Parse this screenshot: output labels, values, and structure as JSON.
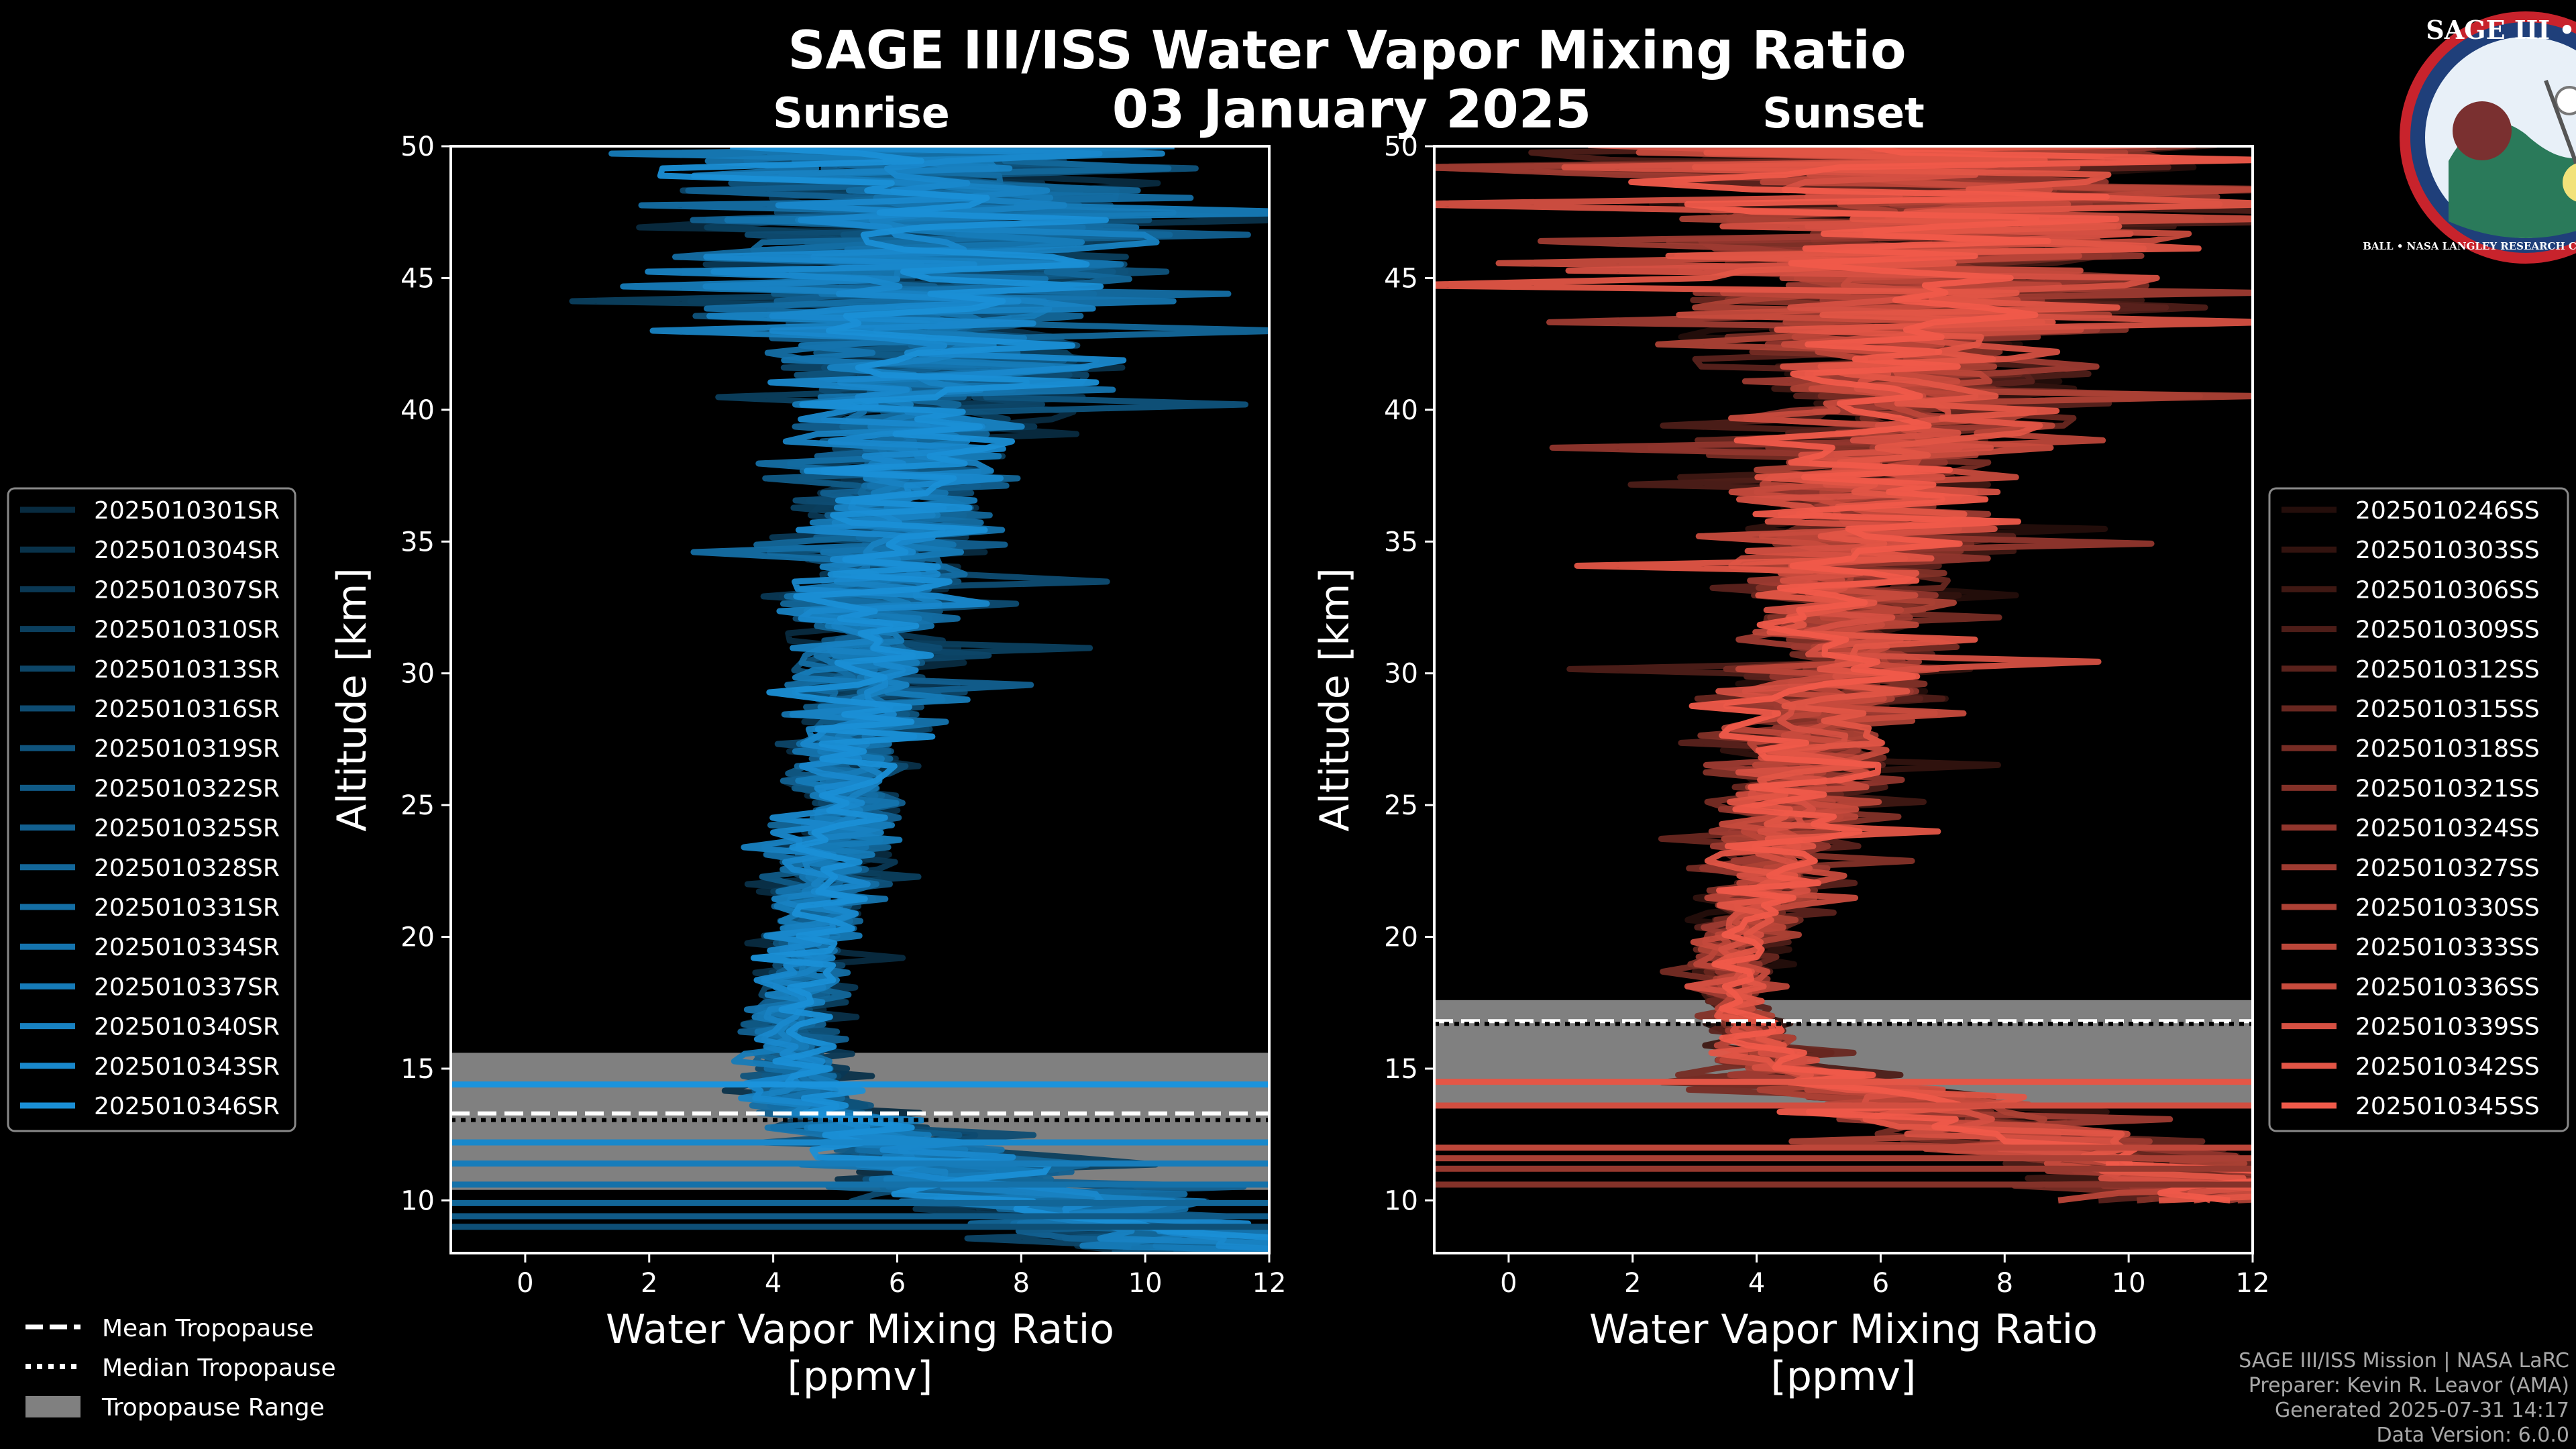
{
  "title": "SAGE III/ISS Water Vapor Mixing Ratio",
  "date": "03 January 2025",
  "logo": {
    "text": "SAGE III • ISS",
    "ring_text": "BALL • NASA LANGLEY RESEARCH CENTER • TAS • ESA"
  },
  "colors": {
    "sunrise": "#1a8fd6",
    "sunset": "#f05a4a",
    "range": "#808080"
  },
  "tropopause_legend": [
    "Mean Tropopause",
    "Median Tropopause",
    "Tropopause Range"
  ],
  "credits": [
    "SAGE III/ISS Mission | NASA LaRC",
    "Preparer: Kevin R. Leavor (AMA)",
    "Generated 2025-07-31 14:17",
    "Data Version: 6.0.0"
  ],
  "chart_data": [
    {
      "type": "line",
      "title": "Sunrise",
      "xlabel": "Water Vapor Mixing Ratio",
      "xlabel2": "[ppmv]",
      "ylabel": "Altitude [km]",
      "xlim": [
        -1.2,
        12
      ],
      "ylim": [
        8,
        50
      ],
      "xticks": [
        "0",
        "2",
        "4",
        "6",
        "8",
        "10",
        "12"
      ],
      "yticks": [
        "10",
        "15",
        "20",
        "25",
        "30",
        "35",
        "40",
        "45",
        "50"
      ],
      "tropopause": {
        "mean": 13.3,
        "median": 13.05,
        "range": [
          10.4,
          15.6
        ]
      },
      "series_names": [
        "2025010301SR",
        "2025010304SR",
        "2025010307SR",
        "2025010310SR",
        "2025010313SR",
        "2025010316SR",
        "2025010319SR",
        "2025010322SR",
        "2025010325SR",
        "2025010328SR",
        "2025010331SR",
        "2025010334SR",
        "2025010337SR",
        "2025010340SR",
        "2025010343SR",
        "2025010346SR"
      ],
      "profile": {
        "alt": [
          8,
          10,
          12,
          13,
          14,
          15,
          16,
          18,
          20,
          22,
          25,
          28,
          30,
          33,
          36,
          40,
          43,
          45,
          48,
          50
        ],
        "mean": [
          12,
          8,
          6,
          5,
          4.5,
          4.4,
          4.2,
          4.4,
          4.7,
          4.9,
          5.1,
          5.3,
          5.5,
          5.7,
          6,
          6.3,
          6.5,
          6.6,
          6.8,
          6.8
        ],
        "spread": [
          4,
          3,
          2.5,
          1.5,
          1.0,
          1.0,
          0.8,
          0.7,
          0.9,
          1.0,
          1.2,
          1.4,
          1.5,
          1.7,
          2.0,
          2.6,
          3.5,
          4.5,
          5.5,
          6
        ]
      }
    },
    {
      "type": "line",
      "title": "Sunset",
      "xlabel": "Water Vapor Mixing Ratio",
      "xlabel2": "[ppmv]",
      "ylabel": "Altitude [km]",
      "xlim": [
        -1.2,
        12
      ],
      "ylim": [
        8,
        50
      ],
      "xticks": [
        "0",
        "2",
        "4",
        "6",
        "8",
        "10",
        "12"
      ],
      "yticks": [
        "10",
        "15",
        "20",
        "25",
        "30",
        "35",
        "40",
        "45",
        "50"
      ],
      "tropopause": {
        "mean": 16.8,
        "median": 16.7,
        "range": [
          13.5,
          17.6
        ]
      },
      "series_names": [
        "2025010246SS",
        "2025010303SS",
        "2025010306SS",
        "2025010309SS",
        "2025010312SS",
        "2025010315SS",
        "2025010318SS",
        "2025010321SS",
        "2025010324SS",
        "2025010327SS",
        "2025010330SS",
        "2025010333SS",
        "2025010336SS",
        "2025010339SS",
        "2025010342SS",
        "2025010345SS"
      ],
      "profile": {
        "alt": [
          10,
          12,
          14,
          15,
          16,
          17,
          18,
          20,
          22,
          25,
          28,
          30,
          33,
          36,
          40,
          43,
          45,
          48,
          50
        ],
        "mean": [
          12,
          9,
          6,
          4.5,
          4.0,
          3.8,
          3.6,
          3.7,
          4.2,
          4.6,
          5.0,
          5.3,
          5.6,
          5.9,
          6.3,
          6.5,
          6.6,
          6.8,
          6.8
        ],
        "spread": [
          3,
          3,
          2.5,
          1.5,
          1.0,
          0.8,
          0.7,
          0.9,
          1.2,
          1.5,
          1.8,
          2.0,
          2.3,
          2.6,
          3.2,
          4.2,
          5.0,
          5.8,
          6.2
        ]
      }
    }
  ]
}
